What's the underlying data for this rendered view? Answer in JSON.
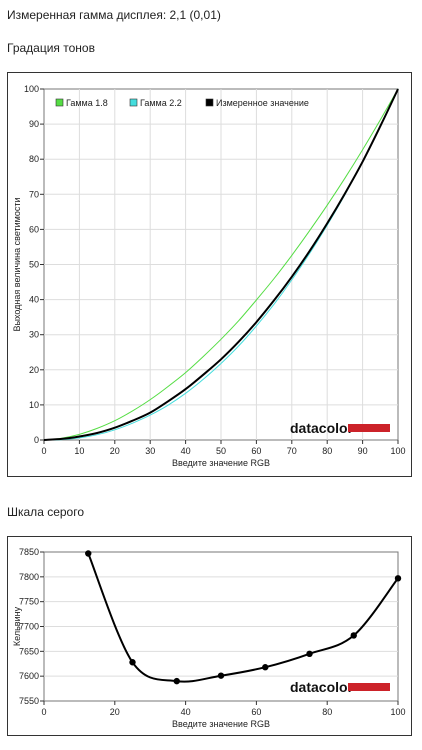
{
  "measured_gamma": "Измеренная гамма дисплея: 2,1 (0,01)",
  "sections": {
    "tone": "Градация тонов",
    "gray": "Шкала серого"
  },
  "brand": {
    "name": "datacolor",
    "bar_color": "#cc2229"
  },
  "chart_data": [
    {
      "type": "line",
      "title": "",
      "xlabel": "Введите значение RGB",
      "ylabel": "Выходная величина светимости",
      "xlim": [
        0,
        100
      ],
      "ylim": [
        0,
        100
      ],
      "xticks": [
        0,
        10,
        20,
        30,
        40,
        50,
        60,
        70,
        80,
        90,
        100
      ],
      "yticks": [
        0,
        10,
        20,
        30,
        40,
        50,
        60,
        70,
        80,
        90,
        100
      ],
      "legend": "top-left",
      "x": [
        0,
        5,
        10,
        15,
        20,
        25,
        30,
        35,
        40,
        45,
        50,
        55,
        60,
        65,
        70,
        75,
        80,
        85,
        90,
        95,
        100
      ],
      "series": [
        {
          "name": "Гамма 1.8",
          "color": "#55dd44",
          "values": [
            0,
            0.5,
            1.6,
            3.3,
            5.5,
            8.3,
            11.5,
            15.2,
            19.2,
            23.8,
            28.7,
            34.0,
            39.9,
            46.0,
            52.6,
            59.6,
            66.9,
            74.6,
            82.7,
            91.2,
            100
          ]
        },
        {
          "name": "Гамма 2.2",
          "color": "#44dddd",
          "values": [
            0,
            0.1,
            0.6,
            1.5,
            2.9,
            4.8,
            7.1,
            9.9,
            13.3,
            17.3,
            21.8,
            26.8,
            32.5,
            38.7,
            45.6,
            53.1,
            61.2,
            69.9,
            79.3,
            89.3,
            100
          ]
        },
        {
          "name": "Измеренное значение",
          "color": "#000000",
          "values": [
            0,
            0.3,
            1.0,
            2.0,
            3.5,
            5.5,
            7.8,
            11.0,
            14.5,
            18.6,
            23.0,
            28.0,
            33.6,
            39.8,
            46.5,
            53.8,
            61.7,
            70.2,
            79.3,
            89.4,
            100
          ]
        }
      ]
    },
    {
      "type": "line",
      "title": "",
      "xlabel": "Введите значение RGB",
      "ylabel": "Кельвину",
      "xlim": [
        0,
        100
      ],
      "ylim": [
        7550,
        7850
      ],
      "xticks": [
        0,
        20,
        40,
        60,
        80,
        100
      ],
      "yticks": [
        7550,
        7600,
        7650,
        7700,
        7750,
        7800,
        7850
      ],
      "x": [
        12.5,
        25,
        37.5,
        50,
        62.5,
        75,
        87.5,
        100
      ],
      "series": [
        {
          "name": "",
          "color": "#000000",
          "values": [
            7847,
            7628,
            7590,
            7601,
            7618,
            7645,
            7682,
            7797
          ]
        }
      ]
    }
  ]
}
